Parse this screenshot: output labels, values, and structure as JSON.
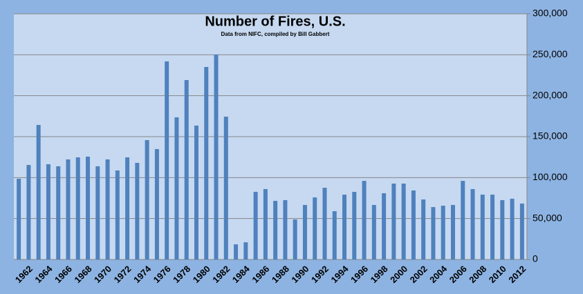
{
  "chart_data": {
    "type": "bar",
    "title": "Number of Fires, U.S.",
    "subtitle": "Data from NIFC, compiled by Bill Gabbert",
    "categories": [
      null,
      "1962",
      null,
      "1964",
      null,
      "1966",
      null,
      "1968",
      null,
      "1970",
      null,
      "1972",
      null,
      "1974",
      null,
      "1976",
      null,
      "1978",
      null,
      "1980",
      null,
      "1982",
      null,
      "1984",
      null,
      "1986",
      null,
      "1988",
      null,
      "1990",
      null,
      "1992",
      null,
      "1994",
      null,
      "1996",
      null,
      "1998",
      null,
      "2000",
      null,
      "2002",
      null,
      "2004",
      null,
      "2006",
      null,
      "2008",
      null,
      "2010",
      null,
      "2012"
    ],
    "values": [
      98600,
      115400,
      164300,
      116300,
      113800,
      122200,
      124700,
      125600,
      113800,
      122200,
      108700,
      124700,
      118000,
      145800,
      134800,
      241900,
      173600,
      219100,
      163500,
      235100,
      250300,
      174400,
      18500,
      21000,
      82600,
      86000,
      71600,
      72500,
      48900,
      66600,
      75800,
      87600,
      59000,
      79200,
      82600,
      96000,
      66600,
      80900,
      92700,
      92700,
      84300,
      73300,
      64000,
      65700,
      66600,
      96000,
      86000,
      79200,
      79200,
      72500,
      74200,
      68300
    ],
    "color": "#4f81bd",
    "ylim": [
      0,
      300000
    ],
    "yticks": [
      0,
      {
        "value": 50000,
        "label": "50,000"
      },
      {
        "value": 100000,
        "label": "100,000"
      },
      {
        "value": 150000,
        "label": "150,000"
      },
      {
        "value": 200000,
        "label": "200,000"
      },
      {
        "value": 250000,
        "label": "250,000"
      },
      {
        "value": 300000,
        "label": "300,000"
      }
    ],
    "grid": true
  }
}
